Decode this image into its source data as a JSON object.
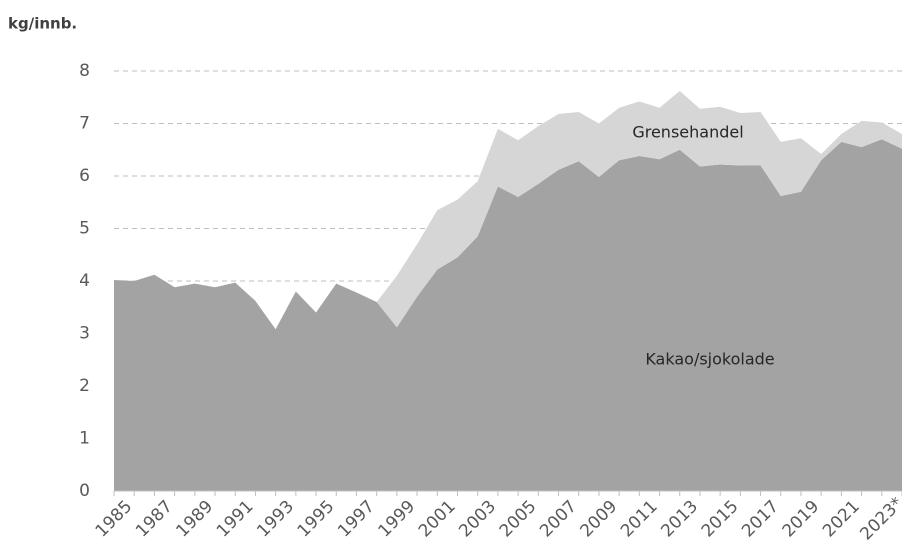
{
  "chart_data": {
    "type": "stacked_area",
    "ylabel": "kg/innb.",
    "categories": [
      "1985",
      null,
      "1987",
      null,
      "1989",
      null,
      "1991",
      null,
      "1993",
      null,
      "1995",
      null,
      "1997",
      null,
      "1999",
      null,
      "2001",
      null,
      "2003",
      null,
      "2005",
      null,
      "2007",
      null,
      "2009",
      null,
      "2011",
      null,
      "2013",
      null,
      "2015",
      null,
      "2017",
      null,
      "2019",
      null,
      "2021",
      null,
      "2023*",
      null
    ],
    "series": [
      {
        "name": "Kakao/sjokolade",
        "color": "#a3a3a3",
        "values": [
          4.02,
          4.0,
          4.12,
          3.88,
          3.95,
          3.88,
          3.97,
          3.62,
          3.08,
          3.8,
          3.4,
          3.95,
          3.78,
          3.6,
          3.12,
          3.7,
          4.22,
          4.45,
          4.85,
          5.8,
          5.6,
          5.85,
          6.12,
          6.28,
          5.98,
          6.3,
          6.38,
          6.32,
          6.5,
          6.18,
          6.22,
          6.2,
          6.2,
          5.62,
          5.7,
          6.3,
          6.65,
          6.55,
          6.7,
          6.52
        ]
      },
      {
        "name": "Grensehandel",
        "color": "#d6d6d6",
        "values": [
          0,
          0,
          0,
          0,
          0,
          0,
          0,
          0,
          0,
          0,
          0,
          0,
          0,
          0,
          0.98,
          1.0,
          1.13,
          1.1,
          1.05,
          1.1,
          1.08,
          1.1,
          1.06,
          0.94,
          1.02,
          1.0,
          1.04,
          0.98,
          1.12,
          1.1,
          1.1,
          1.0,
          1.02,
          1.03,
          1.02,
          0.12,
          0.15,
          0.5,
          0.32,
          0.28
        ]
      }
    ],
    "ylim": [
      0,
      8
    ],
    "yticks": [
      0,
      1,
      2,
      3,
      4,
      5,
      6,
      7,
      8
    ],
    "grid": true
  }
}
